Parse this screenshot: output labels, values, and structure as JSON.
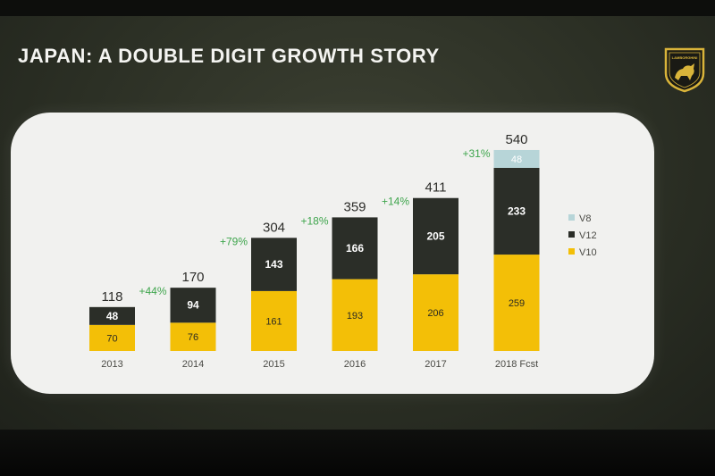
{
  "title": "JAPAN: A DOUBLE DIGIT GROWTH STORY",
  "logo_text": "LAMBORGHINI",
  "colors": {
    "V8": "#b7d5d8",
    "V12": "#2b2e28",
    "V10": "#f3bf07",
    "growth": "#3fa54d",
    "panel": "#f1f1ef"
  },
  "chart_data": {
    "type": "bar",
    "stacked": true,
    "categories": [
      "2013",
      "2014",
      "2015",
      "2016",
      "2017",
      "2018 Fcst"
    ],
    "series": [
      {
        "name": "V10",
        "values": [
          70,
          76,
          161,
          193,
          206,
          259
        ]
      },
      {
        "name": "V12",
        "values": [
          48,
          94,
          143,
          166,
          205,
          233
        ]
      },
      {
        "name": "V8",
        "values": [
          0,
          0,
          0,
          0,
          0,
          48
        ]
      }
    ],
    "totals": [
      118,
      170,
      304,
      359,
      411,
      540
    ],
    "growth_labels": [
      "+44%",
      "+79%",
      "+18%",
      "+14%",
      "+31%"
    ],
    "legend_order": [
      "V8",
      "V12",
      "V10"
    ],
    "legend_position": "right",
    "ylim": [
      0,
      540
    ],
    "grid": false,
    "title": "JAPAN: A DOUBLE DIGIT GROWTH STORY"
  }
}
